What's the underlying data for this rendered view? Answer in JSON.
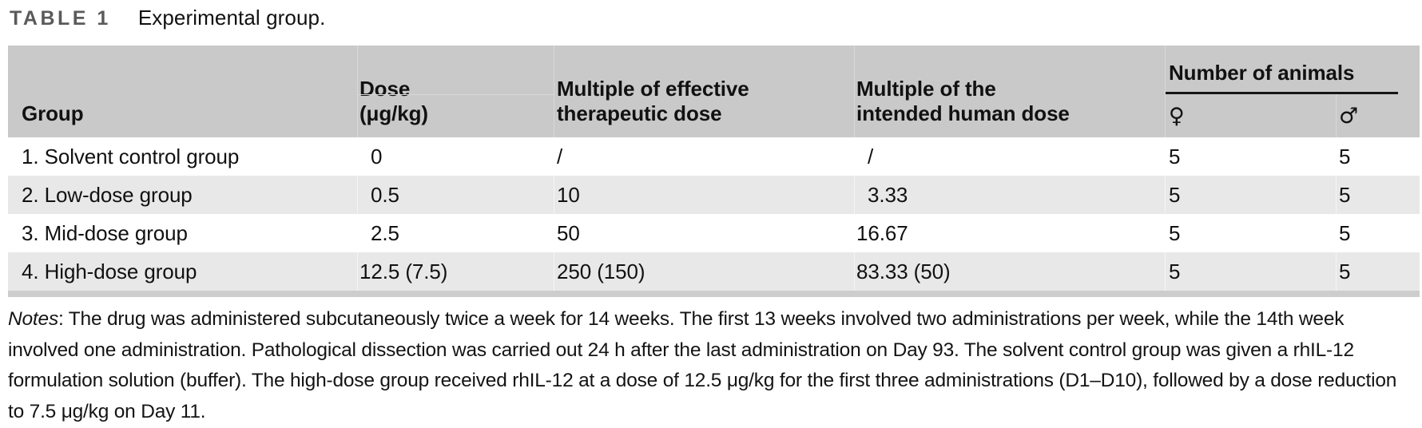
{
  "title": {
    "label": "TABLE 1",
    "caption": "Experimental group."
  },
  "table": {
    "header": {
      "group": "Group",
      "dose": {
        "line1": "Dose",
        "line2": "(μg/kg)"
      },
      "multiple_effective": {
        "line1": "Multiple of effective",
        "line2": "therapeutic dose"
      },
      "multiple_human": {
        "line1": "Multiple of the",
        "line2": "intended human dose"
      },
      "animals": {
        "label": "Number of animals",
        "female_symbol": "♀",
        "male_symbol": "♂"
      }
    },
    "rows": [
      {
        "group": "1. Solvent control group",
        "dose": "0",
        "multiple_effective": "/",
        "multiple_human": "/",
        "female": "5",
        "male": "5"
      },
      {
        "group": "2. Low-dose group",
        "dose": "0.5",
        "multiple_effective": "10",
        "multiple_human": "3.33",
        "female": "5",
        "male": "5"
      },
      {
        "group": "3. Mid-dose group",
        "dose": "2.5",
        "multiple_effective": "50",
        "multiple_human": "16.67",
        "female": "5",
        "male": "5"
      },
      {
        "group": "4. High-dose group",
        "dose": "12.5 (7.5)",
        "multiple_effective": "250 (150)",
        "multiple_human": "83.33 (50)",
        "female": "5",
        "male": "5"
      }
    ]
  },
  "notes": {
    "label": "Notes",
    "text": ": The drug was administered subcutaneously twice a week for 14 weeks. The first 13 weeks involved two administrations per week, while the 14th week involved one administration. Pathological dissection was carried out 24 h after the last administration on Day 93. The solvent control group was given a rhIL-12 formulation solution (buffer). The high-dose group received rhIL-12 at a dose of 12.5 μg/kg for the first three administrations (D1–D10), followed by a dose reduction to 7.5 μg/kg on Day 11."
  },
  "colors": {
    "header_bg": "#c9c9c9",
    "row_alt_bg": "#e8e8e8",
    "bottom_bar": "#cdcdcd",
    "table_label": "#5a5a5a",
    "text": "#111111",
    "animals_rule": "#141414",
    "header_separator": "#d9d9d9"
  }
}
